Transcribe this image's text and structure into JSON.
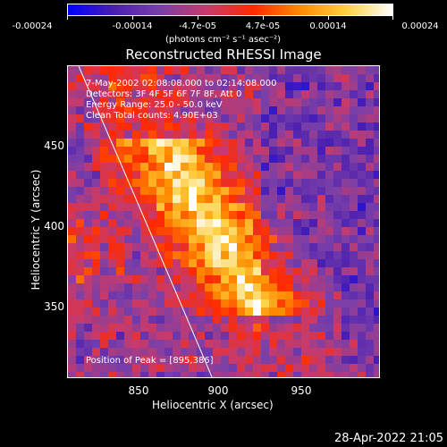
{
  "colorbar": {
    "ticks": [
      "-0.00024",
      "-0.00014",
      "-4.7e-05",
      "4.7e-05",
      "0.00014",
      "0.00024"
    ],
    "units": "(photons cm⁻² s⁻¹ asec⁻²)"
  },
  "title": "Reconstructed RHESSI Image",
  "annotations": {
    "time": "7-May-2002 02:08:08.000 to 02:14:08.000",
    "detectors": "Detectors: 3F 4F 5F 6F 7F 8F, Att 0",
    "energy": "Energy Range: 25.0 - 50.0 keV",
    "clean": "Clean  Total counts: 4.90E+03",
    "peak": "Position of Peak = [895,386]"
  },
  "axes": {
    "xlabel": "Heliocentric X (arcsec)",
    "ylabel": "Heliocentric Y (arcsec)",
    "xticks": [
      "850",
      "900",
      "950"
    ],
    "yticks": [
      "450",
      "400",
      "350"
    ]
  },
  "timestamp": "28-Apr-2022 21:05",
  "colors": {
    "colormap": [
      "#0000ff",
      "#4b1fb0",
      "#7a3fa8",
      "#c83a6a",
      "#ff2a00",
      "#ff8a00",
      "#ffd040",
      "#ffffff"
    ],
    "limb": "#ffffff"
  }
}
